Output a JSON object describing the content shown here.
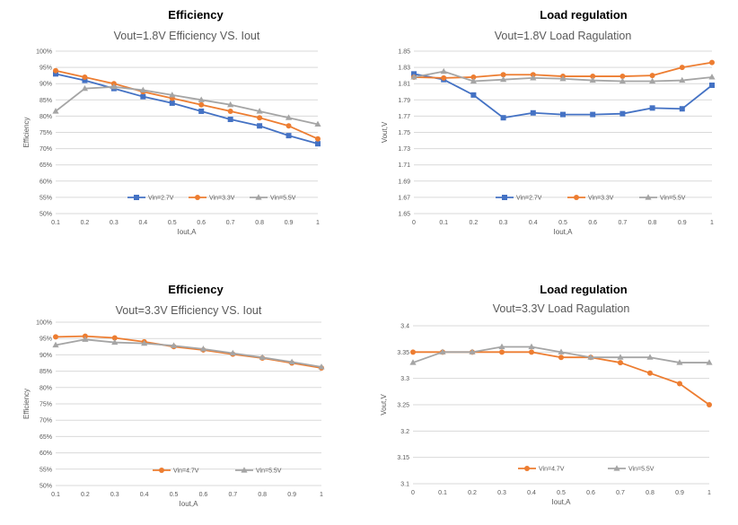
{
  "headings": [
    "Efficiency",
    "Load regulation",
    "Efficiency",
    "Load regulation"
  ],
  "chart_data": [
    {
      "type": "line",
      "title": "Vout=1.8V     Efficiency  VS.  Iout",
      "xlabel": "Iout,A",
      "ylabel": "Efficiency",
      "x": [
        0.1,
        0.2,
        0.3,
        0.4,
        0.5,
        0.6,
        0.7,
        0.8,
        0.9,
        1
      ],
      "x_ticks": [
        "0.1",
        "0.2",
        "0.3",
        "0.4",
        "0.5",
        "0.6",
        "0.7",
        "0.8",
        "0.9",
        "1"
      ],
      "y_ticks": [
        "50%",
        "55%",
        "60%",
        "65%",
        "70%",
        "75%",
        "80%",
        "85%",
        "90%",
        "95%",
        "100%"
      ],
      "ylim": [
        50,
        100
      ],
      "grid": true,
      "legend": "bottom-center",
      "series": [
        {
          "name": "Vin=2.7V",
          "color": "#4472C4",
          "marker": "square",
          "values": [
            93,
            91,
            88.5,
            86,
            84,
            81.5,
            79,
            77,
            74,
            71.5
          ]
        },
        {
          "name": "Vin=3.3V",
          "color": "#ED7D31",
          "marker": "circle",
          "values": [
            94,
            92,
            90,
            87.5,
            85.5,
            83.5,
            81.5,
            79.5,
            77,
            73
          ]
        },
        {
          "name": "Vin=5.5V",
          "color": "#A5A5A5",
          "marker": "triangle",
          "values": [
            81.5,
            88.5,
            89,
            88,
            86.5,
            85,
            83.5,
            81.5,
            79.5,
            77.5
          ]
        }
      ]
    },
    {
      "type": "line",
      "title": "Vout=1.8V     Load Ragulation",
      "xlabel": "Iout,A",
      "ylabel": "Vout,V",
      "x": [
        0,
        0.1,
        0.2,
        0.3,
        0.4,
        0.5,
        0.6,
        0.7,
        0.8,
        0.9,
        1
      ],
      "x_ticks": [
        "0",
        "0.1",
        "0.2",
        "0.3",
        "0.4",
        "0.5",
        "0.6",
        "0.7",
        "0.8",
        "0.9",
        "1"
      ],
      "y_ticks": [
        "1.65",
        "1.67",
        "1.69",
        "1.71",
        "1.73",
        "1.75",
        "1.77",
        "1.79",
        "1.81",
        "1.83",
        "1.85"
      ],
      "ylim": [
        1.65,
        1.85
      ],
      "grid": true,
      "legend": "bottom-center",
      "series": [
        {
          "name": "Vin=2.7V",
          "color": "#4472C4",
          "marker": "square",
          "values": [
            1.822,
            1.815,
            1.796,
            1.768,
            1.774,
            1.772,
            1.772,
            1.773,
            1.78,
            1.779,
            1.808
          ]
        },
        {
          "name": "Vin=3.3V",
          "color": "#ED7D31",
          "marker": "circle",
          "values": [
            1.818,
            1.817,
            1.818,
            1.821,
            1.821,
            1.819,
            1.819,
            1.819,
            1.82,
            1.83,
            1.836
          ]
        },
        {
          "name": "Vin=5.5V",
          "color": "#A5A5A5",
          "marker": "triangle",
          "values": [
            1.818,
            1.825,
            1.813,
            1.815,
            1.817,
            1.816,
            1.814,
            1.813,
            1.813,
            1.814,
            1.818
          ]
        }
      ]
    },
    {
      "type": "line",
      "title": "Vout=3.3V     Efficiency  VS.  Iout",
      "xlabel": "Iout,A",
      "ylabel": "Efficiency",
      "x": [
        0.1,
        0.2,
        0.3,
        0.4,
        0.5,
        0.6,
        0.7,
        0.8,
        0.9,
        1
      ],
      "x_ticks": [
        "0.1",
        "0.2",
        "0.3",
        "0.4",
        "0.5",
        "0.6",
        "0.7",
        "0.8",
        "0.9",
        "1"
      ],
      "y_ticks": [
        "50%",
        "55%",
        "60%",
        "65%",
        "70%",
        "75%",
        "80%",
        "85%",
        "90%",
        "95%",
        "100%"
      ],
      "ylim": [
        50,
        100
      ],
      "grid": true,
      "legend": "bottom-center",
      "series": [
        {
          "name": "Vin=4.7V",
          "color": "#ED7D31",
          "marker": "circle",
          "values": [
            95.5,
            95.7,
            95.2,
            94,
            92.5,
            91.5,
            90.2,
            89,
            87.5,
            86
          ]
        },
        {
          "name": "Vin=5.5V",
          "color": "#A5A5A5",
          "marker": "triangle",
          "values": [
            93,
            94.7,
            93.8,
            93.5,
            92.8,
            91.8,
            90.5,
            89.2,
            87.8,
            86.3
          ]
        }
      ]
    },
    {
      "type": "line",
      "title": "Vout=3.3V     Load Ragulation",
      "xlabel": "Iout,A",
      "ylabel": "Vout,V",
      "x": [
        0,
        0.1,
        0.2,
        0.3,
        0.4,
        0.5,
        0.6,
        0.7,
        0.8,
        0.9,
        1
      ],
      "x_ticks": [
        "0",
        "0.1",
        "0.2",
        "0.3",
        "0.4",
        "0.5",
        "0.6",
        "0.7",
        "0.8",
        "0.9",
        "1"
      ],
      "y_ticks": [
        "3.1",
        "3.15",
        "3.2",
        "3.25",
        "3.3",
        "3.35",
        "3.4"
      ],
      "ylim": [
        3.1,
        3.4
      ],
      "grid": true,
      "legend": "bottom-center",
      "series": [
        {
          "name": "Vin=4.7V",
          "color": "#ED7D31",
          "marker": "circle",
          "values": [
            3.35,
            3.35,
            3.35,
            3.35,
            3.35,
            3.34,
            3.34,
            3.33,
            3.31,
            3.29,
            3.25
          ]
        },
        {
          "name": "Vin=5.5V",
          "color": "#A5A5A5",
          "marker": "triangle",
          "values": [
            3.33,
            3.35,
            3.35,
            3.36,
            3.36,
            3.35,
            3.34,
            3.34,
            3.34,
            3.33,
            3.33
          ]
        }
      ]
    }
  ]
}
